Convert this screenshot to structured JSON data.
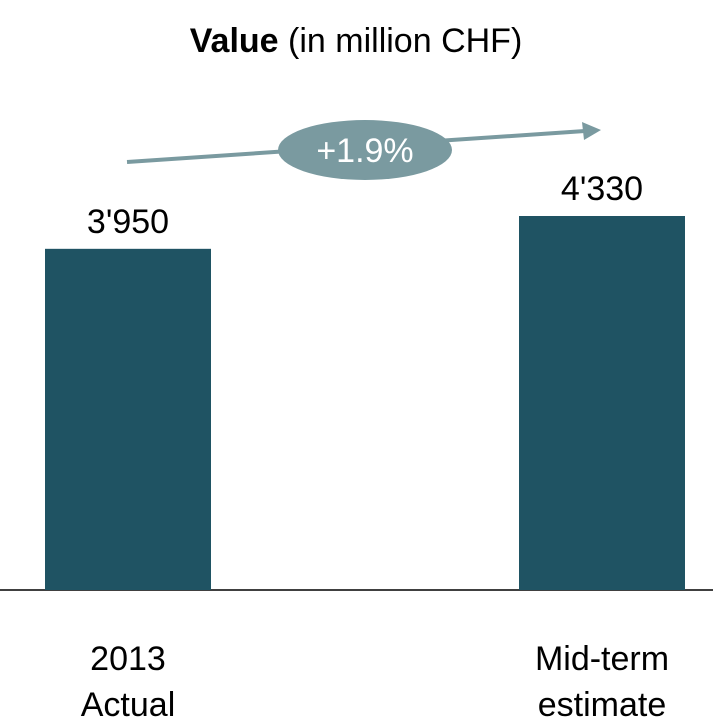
{
  "chart_data": {
    "type": "bar",
    "title": "Value",
    "title_unit": "(in million CHF)",
    "categories": [
      [
        "2013",
        "Actual"
      ],
      [
        "Mid-term",
        "estimate"
      ]
    ],
    "values": [
      3950,
      4330
    ],
    "value_labels": [
      "3'950",
      "4'330"
    ],
    "color": "#1f5363",
    "annotation": "+1.9%",
    "annotation_color": "#7a9aa0"
  }
}
